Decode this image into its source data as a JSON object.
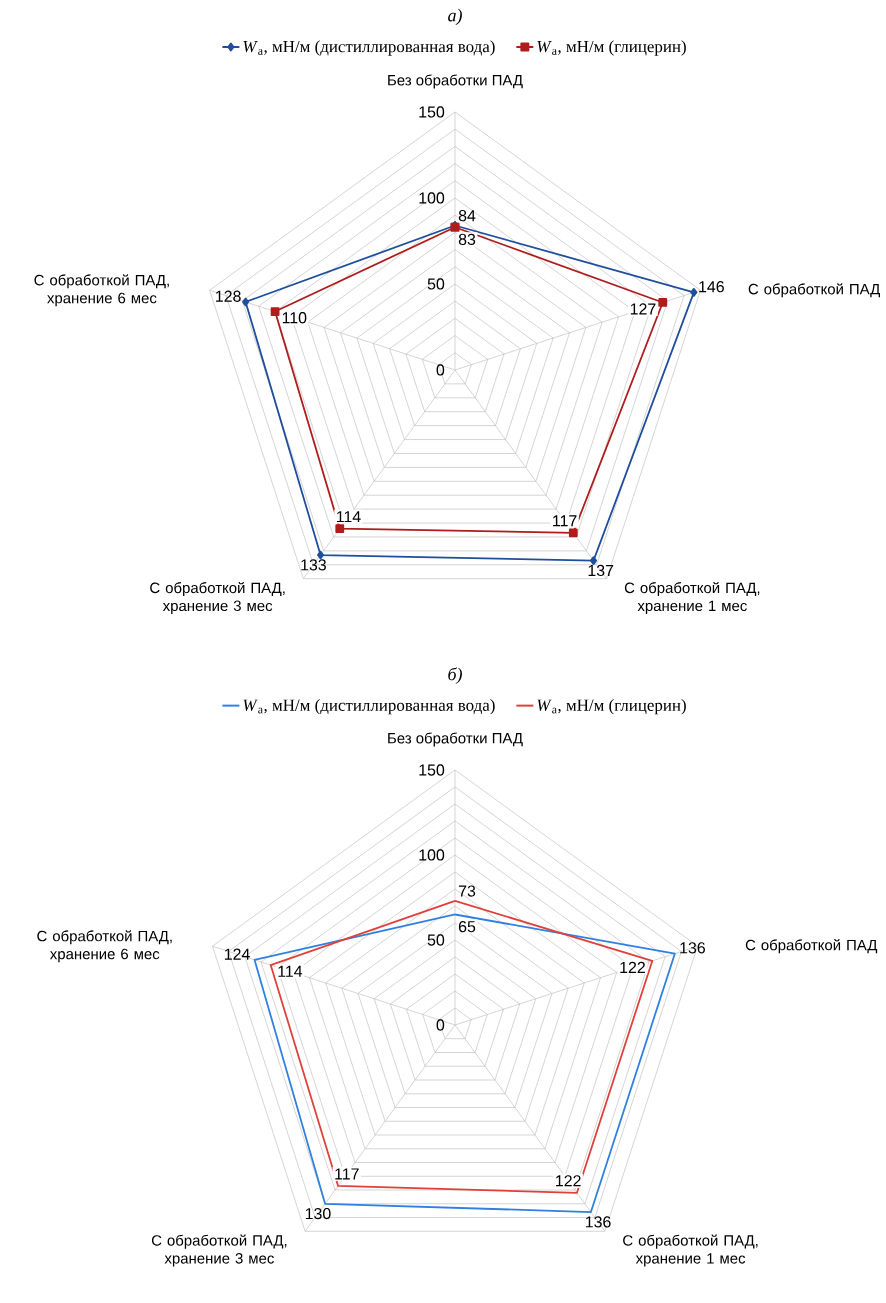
{
  "chart_data": [
    {
      "type": "radar",
      "title": "а)",
      "categories": [
        "Без обработки ПАД",
        "С обработкой ПАД",
        "С обработкой ПАД, хранение 1 мес",
        "С обработкой ПАД, хранение 3 мес",
        "С обработкой ПАД, хранение 6 мес"
      ],
      "ylim": [
        0,
        150
      ],
      "yticks": [
        0,
        50,
        100,
        150
      ],
      "grid": true,
      "legend": "top",
      "data_labels": true,
      "series": [
        {
          "name": "*W*$_{а}$, мН/м (дистиллированная вода)",
          "color": "#1f4e9c",
          "marker": "diamond",
          "values": [
            84,
            146,
            137,
            133,
            128
          ]
        },
        {
          "name": "*W*$_{а}$, мН/м (глицерин)",
          "color": "#b01c1c",
          "marker": "square",
          "values": [
            83,
            127,
            117,
            114,
            110
          ]
        }
      ]
    },
    {
      "type": "radar",
      "title": "б)",
      "categories": [
        "Без обработки ПАД",
        "С обработкой ПАД",
        "С обработкой ПАД, хранение 1 мес",
        "С обработкой ПАД, хранение 3 мес",
        "С обработкой ПАД, хранение 6 мес"
      ],
      "ylim": [
        0,
        150
      ],
      "yticks": [
        0,
        50,
        100,
        150
      ],
      "grid": true,
      "legend": "top",
      "data_labels": true,
      "series": [
        {
          "name": "*W*$_{а}$, мН/м (дистиллированная вода)",
          "color": "#2f80e0",
          "values": [
            65,
            136,
            136,
            130,
            124
          ]
        },
        {
          "name": "*W*$_{а}$, мН/м (глицерин)",
          "color": "#e0403a",
          "values": [
            73,
            122,
            122,
            117,
            114
          ]
        }
      ]
    }
  ]
}
